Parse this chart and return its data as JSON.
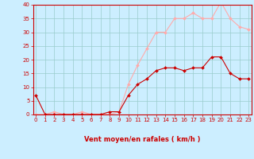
{
  "title": "",
  "xlabel": "Vent moyen/en rafales ( km/h )",
  "x_values": [
    0,
    1,
    2,
    3,
    4,
    5,
    6,
    7,
    8,
    9,
    10,
    11,
    12,
    13,
    14,
    15,
    16,
    17,
    18,
    19,
    20,
    21,
    22,
    23
  ],
  "wind_avg": [
    7,
    0,
    0,
    0,
    0,
    0,
    0,
    0,
    1,
    1,
    7,
    11,
    13,
    16,
    17,
    17,
    16,
    17,
    17,
    21,
    21,
    15,
    13,
    13
  ],
  "wind_gust": [
    0,
    0,
    1,
    0,
    0,
    1,
    0,
    0,
    0,
    1,
    11,
    18,
    24,
    30,
    30,
    35,
    35,
    37,
    35,
    35,
    41,
    35,
    32,
    31
  ],
  "ylim": [
    0,
    40
  ],
  "yticks": [
    0,
    5,
    10,
    15,
    20,
    25,
    30,
    35,
    40
  ],
  "xticks": [
    0,
    1,
    2,
    3,
    4,
    5,
    6,
    7,
    8,
    9,
    10,
    11,
    12,
    13,
    14,
    15,
    16,
    17,
    18,
    19,
    20,
    21,
    22,
    23
  ],
  "color_avg": "#cc0000",
  "color_gust": "#ffaaaa",
  "bg_color": "#cceeff",
  "grid_color": "#99cccc",
  "axis_color": "#cc0000",
  "label_color": "#cc0000",
  "tick_fontsize": 5,
  "xlabel_fontsize": 6,
  "marker_size": 2.0,
  "linewidth": 0.8
}
